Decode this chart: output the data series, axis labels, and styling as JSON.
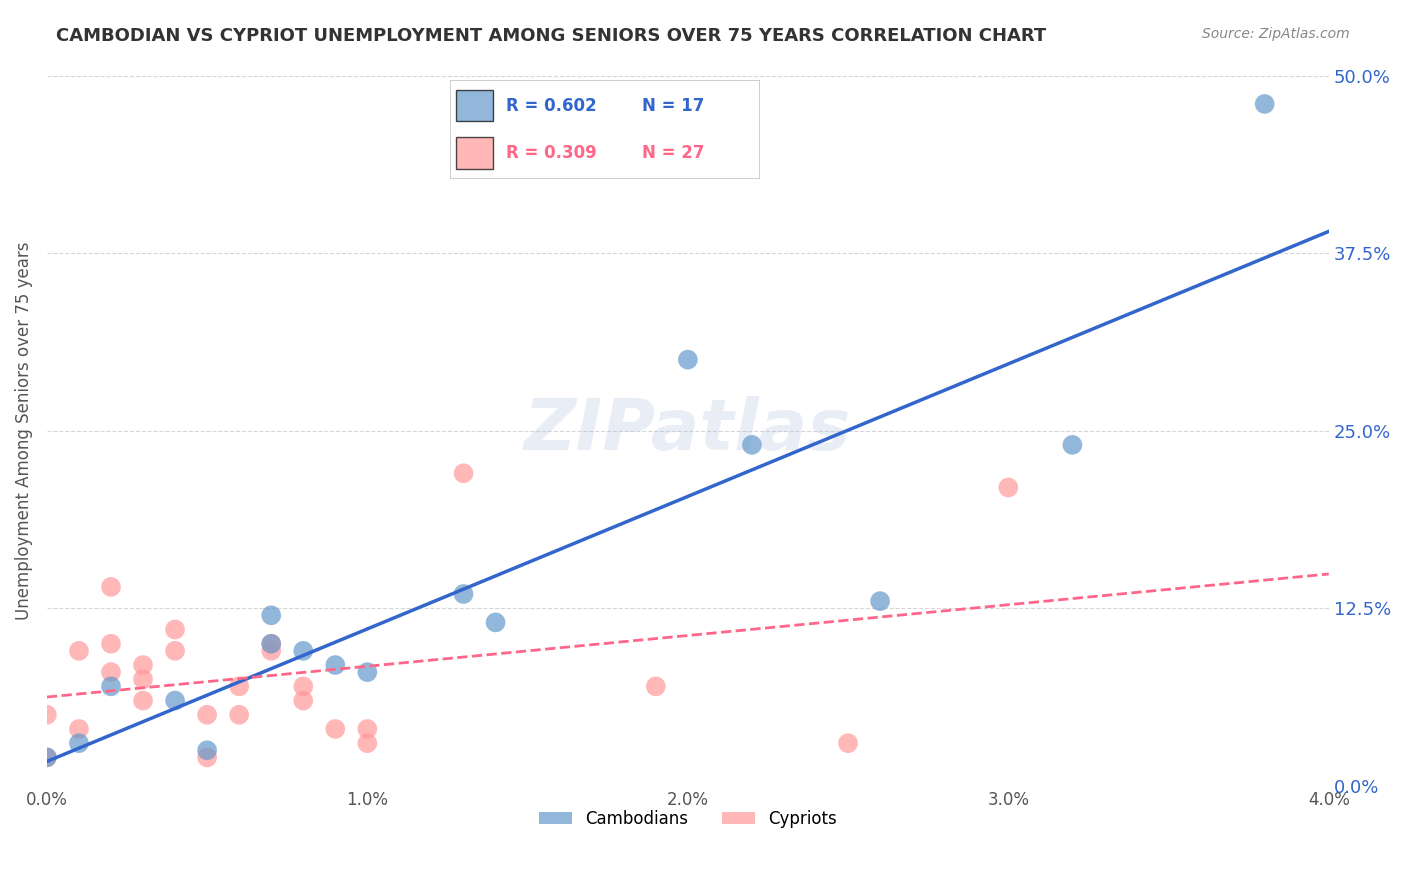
{
  "title": "CAMBODIAN VS CYPRIOT UNEMPLOYMENT AMONG SENIORS OVER 75 YEARS CORRELATION CHART",
  "source": "Source: ZipAtlas.com",
  "xlabel_ticks": [
    "0.0%",
    "1.0%",
    "2.0%",
    "3.0%",
    "4.0%"
  ],
  "xlabel_vals": [
    0.0,
    0.01,
    0.02,
    0.03,
    0.04
  ],
  "ylabel": "Unemployment Among Seniors over 75 years",
  "ylabel_ticks": [
    "0.0%",
    "12.5%",
    "25.0%",
    "37.5%",
    "50.0%"
  ],
  "ylabel_vals": [
    0.0,
    0.125,
    0.25,
    0.375,
    0.5
  ],
  "xlim": [
    0.0,
    0.04
  ],
  "ylim": [
    0.0,
    0.5
  ],
  "cambodian_R": 0.602,
  "cambodian_N": 17,
  "cypriot_R": 0.309,
  "cypriot_N": 27,
  "cambodian_color": "#6699CC",
  "cypriot_color": "#FF9999",
  "cambodian_line_color": "#3366CC",
  "cypriot_line_color": "#FF6688",
  "cambodians_x": [
    0.0,
    0.001,
    0.002,
    0.004,
    0.005,
    0.007,
    0.007,
    0.008,
    0.009,
    0.01,
    0.013,
    0.014,
    0.02,
    0.022,
    0.026,
    0.032,
    0.038
  ],
  "cambodians_y": [
    0.02,
    0.03,
    0.07,
    0.06,
    0.025,
    0.1,
    0.12,
    0.095,
    0.085,
    0.08,
    0.135,
    0.115,
    0.3,
    0.24,
    0.13,
    0.24,
    0.48
  ],
  "cypriots_x": [
    0.0,
    0.0,
    0.001,
    0.001,
    0.002,
    0.002,
    0.002,
    0.003,
    0.003,
    0.003,
    0.004,
    0.004,
    0.005,
    0.005,
    0.006,
    0.006,
    0.007,
    0.007,
    0.008,
    0.008,
    0.009,
    0.01,
    0.01,
    0.013,
    0.019,
    0.025,
    0.03
  ],
  "cypriots_y": [
    0.02,
    0.05,
    0.04,
    0.095,
    0.08,
    0.1,
    0.14,
    0.06,
    0.075,
    0.085,
    0.095,
    0.11,
    0.02,
    0.05,
    0.05,
    0.07,
    0.095,
    0.1,
    0.06,
    0.07,
    0.04,
    0.03,
    0.04,
    0.22,
    0.07,
    0.03,
    0.21
  ],
  "watermark": "ZIPatlas",
  "background_color": "#FFFFFF",
  "grid_color": "#CCCCCC"
}
